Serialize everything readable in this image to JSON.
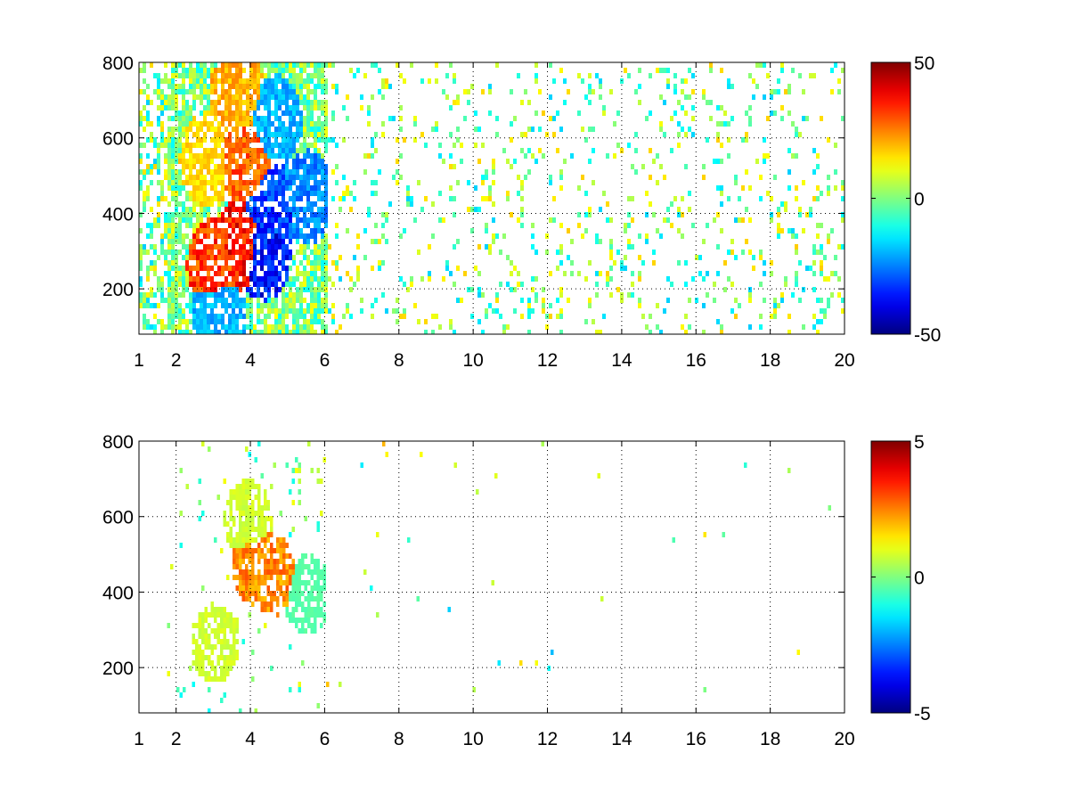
{
  "chart_data": [
    {
      "type": "heatmap",
      "title": "",
      "xlabel": "",
      "ylabel": "",
      "xlim": [
        1,
        20
      ],
      "ylim": [
        80,
        800
      ],
      "xticks": [
        1,
        2,
        4,
        6,
        8,
        10,
        12,
        14,
        16,
        18,
        20
      ],
      "yticks": [
        200,
        400,
        600,
        800
      ],
      "grid": true,
      "colormap": "jet",
      "clim": [
        -50,
        50
      ],
      "colorbar_ticks": [
        -50,
        0,
        50
      ],
      "features": [
        {
          "x": 3.0,
          "y": 270,
          "value": 40
        },
        {
          "x": 3.7,
          "y": 320,
          "value": 45
        },
        {
          "x": 3.8,
          "y": 550,
          "value": 35
        },
        {
          "x": 3.6,
          "y": 720,
          "value": 25
        },
        {
          "x": 4.3,
          "y": 300,
          "value": -45
        },
        {
          "x": 4.5,
          "y": 420,
          "value": -40
        },
        {
          "x": 4.6,
          "y": 650,
          "value": -25
        },
        {
          "x": 3.1,
          "y": 140,
          "value": -25
        },
        {
          "x": 5.5,
          "y": 450,
          "value": -30
        },
        {
          "x": 2.8,
          "y": 550,
          "value": 20
        }
      ]
    },
    {
      "type": "heatmap",
      "title": "",
      "xlabel": "",
      "ylabel": "",
      "xlim": [
        1,
        20
      ],
      "ylim": [
        80,
        800
      ],
      "xticks": [
        1,
        2,
        4,
        6,
        8,
        10,
        12,
        14,
        16,
        18,
        20
      ],
      "yticks": [
        200,
        400,
        600,
        800
      ],
      "grid": true,
      "colormap": "jet",
      "clim": [
        -5,
        5
      ],
      "colorbar_ticks": [
        -5,
        0,
        5
      ],
      "features": [
        {
          "x": 4.1,
          "y": 480,
          "value": 3
        },
        {
          "x": 4.6,
          "y": 450,
          "value": 3
        },
        {
          "x": 3.0,
          "y": 270,
          "value": 1
        },
        {
          "x": 3.9,
          "y": 600,
          "value": 1
        },
        {
          "x": 5.5,
          "y": 400,
          "value": -0.5
        },
        {
          "x": 10.0,
          "y": 780,
          "value": -2
        }
      ]
    }
  ]
}
